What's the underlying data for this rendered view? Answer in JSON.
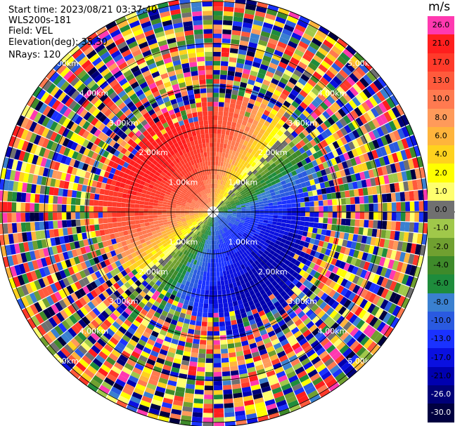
{
  "header": {
    "start_time": "Start time: 2023/08/21 03:37:40",
    "instrument": "WLS200s-181",
    "field": "Field: VEL",
    "elevation": "Elevation(deg): 35.30",
    "nrays": "NRays: 120"
  },
  "colorbar": {
    "unit": "m/s",
    "labels": [
      "26.0",
      "21.0",
      "17.0",
      "13.0",
      "10.0",
      "8.0",
      "6.0",
      "4.0",
      "2.0",
      "1.0",
      "0.0",
      "-1.0",
      "-2.0",
      "-4.0",
      "-6.0",
      "-8.0",
      "-10.0",
      "-13.0",
      "-17.0",
      "-21.0",
      "-26.0",
      "-30.0"
    ],
    "colors": [
      "#ff39b0",
      "#ff1e1e",
      "#ff3a2a",
      "#ff5a3c",
      "#ff7a50",
      "#ff9a5a",
      "#ffb43c",
      "#ffd21e",
      "#ffff00",
      "#ffff6e",
      "#707070",
      "#a0c84a",
      "#70a030",
      "#3e8a2a",
      "#1e8c3c",
      "#3a80d0",
      "#2a5ae0",
      "#1a32ff",
      "#0a10e0",
      "#0000b0",
      "#000078",
      "#000040"
    ]
  },
  "chart_data": {
    "type": "heatmap",
    "projection": "polar PPI scan",
    "field": "VEL",
    "unit": "m/s",
    "nrays": 120,
    "elevation_deg": 35.3,
    "range_rings_km": [
      1.0,
      2.0,
      3.0,
      4.0,
      5.0
    ],
    "ring_labels": [
      "1.00km",
      "2.00km",
      "3.00km",
      "4.00km",
      "5.00km"
    ],
    "max_range_km": 5.0,
    "color_scale": [
      26.0,
      21.0,
      17.0,
      13.0,
      10.0,
      8.0,
      6.0,
      4.0,
      2.0,
      1.0,
      0.0,
      -1.0,
      -2.0,
      -4.0,
      -6.0,
      -8.0,
      -10.0,
      -13.0,
      -17.0,
      -21.0,
      -26.0,
      -30.0
    ],
    "velocity_pattern": {
      "positive_max_bearing_deg": 315,
      "negative_max_bearing_deg": 135,
      "zero_axis_bearing_deg": [
        45,
        225
      ],
      "coherent_range_km": 2.5,
      "noise_beyond_km": 2.5
    }
  }
}
